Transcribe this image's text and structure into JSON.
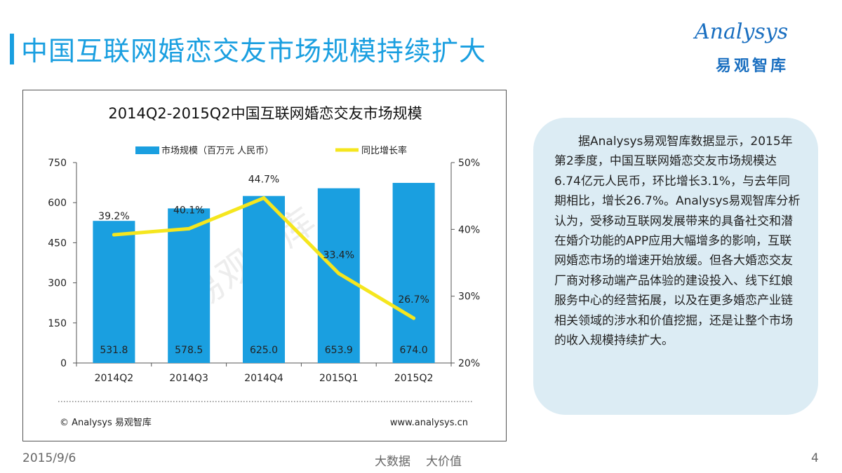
{
  "page": {
    "title": "中国互联网婚恋交友市场规模持续扩大"
  },
  "logo": {
    "brand": "Analysys",
    "brand_cn": "易观智库"
  },
  "chart_data": {
    "type": "bar",
    "title": "2014Q2-2015Q2中国互联网婚恋交友市场规模",
    "categories": [
      "2014Q2",
      "2014Q3",
      "2014Q4",
      "2015Q1",
      "2015Q2"
    ],
    "series": [
      {
        "name": "市场规模（百万元 人民币）",
        "type": "bar",
        "axis": "left",
        "color": "#1a9fe0",
        "values": [
          531.8,
          578.5,
          625.0,
          653.9,
          674.0
        ],
        "labels": [
          "531.8",
          "578.5",
          "625.0",
          "653.9",
          "674.0"
        ]
      },
      {
        "name": "同比增长率",
        "type": "line",
        "axis": "right",
        "color": "#f5e61e",
        "values": [
          39.2,
          40.1,
          44.7,
          33.4,
          26.7
        ],
        "labels": [
          "39.2%",
          "40.1%",
          "44.7%",
          "33.4%",
          "26.7%"
        ]
      }
    ],
    "y_left": {
      "min": 0,
      "max": 750,
      "ticks": [
        "0",
        "150",
        "300",
        "450",
        "600",
        "750"
      ]
    },
    "y_right": {
      "min": 20,
      "max": 50,
      "ticks": [
        "20%",
        "30%",
        "40%",
        "50%"
      ]
    },
    "legend_position": "top",
    "grid": false,
    "watermark": "易观智库",
    "source_left": "© Analysys 易观智库",
    "source_right": "www.analysys.cn"
  },
  "info_box": {
    "text": "据Analysys易观智库数据显示，2015年第2季度，中国互联网婚恋交友市场规模达6.74亿元人民币，环比增长3.1%，与去年同期相比，增长26.7%。Analysys易观智库分析认为，受移动互联网发展带来的具备社交和潜在婚介功能的APP应用大幅增多的影响，互联网婚恋市场的增速开始放缓。但各大婚恋交友厂商对移动端产品体验的建设投入、线下红娘服务中心的经营拓展，以及在更多婚恋产业链相关领域的涉水和价值挖掘，还是让整个市场的收入规模持续扩大。"
  },
  "footer": {
    "date": "2015/9/6",
    "slogan_a": "大数据",
    "slogan_b": "大价值",
    "page_number": "4"
  },
  "colors": {
    "accent": "#1a9fe0",
    "line": "#f5e61e",
    "box_bg": "#dcecf4"
  }
}
